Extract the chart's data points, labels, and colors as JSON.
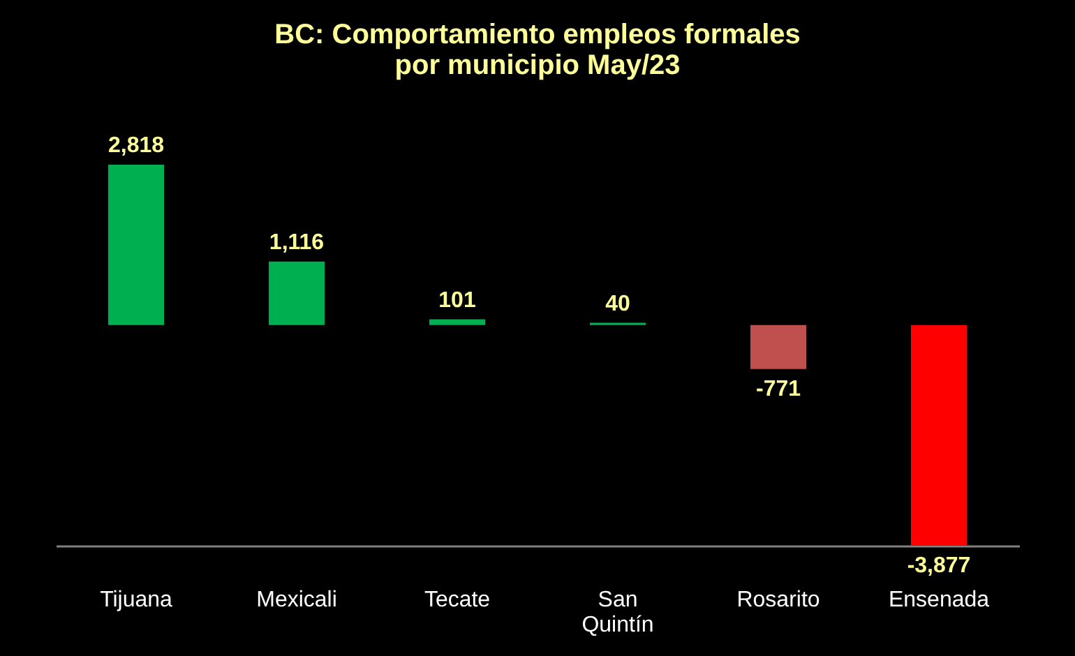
{
  "chart_data": {
    "type": "bar",
    "title": [
      "BC:  Comportamiento empleos formales",
      "por municipio  May/23"
    ],
    "categories": [
      "Tijuana",
      "Mexicali",
      "Tecate",
      "San Quintín",
      "Rosarito",
      "Ensenada"
    ],
    "values": [
      2818,
      1116,
      101,
      40,
      -771,
      -3877
    ],
    "value_labels": [
      "2,818",
      "1,116",
      "101",
      "40",
      "-771",
      "-3,877"
    ],
    "colors": [
      "#00b050",
      "#00b050",
      "#00b050",
      "#00b050",
      "#c0504d",
      "#ff0000"
    ]
  }
}
